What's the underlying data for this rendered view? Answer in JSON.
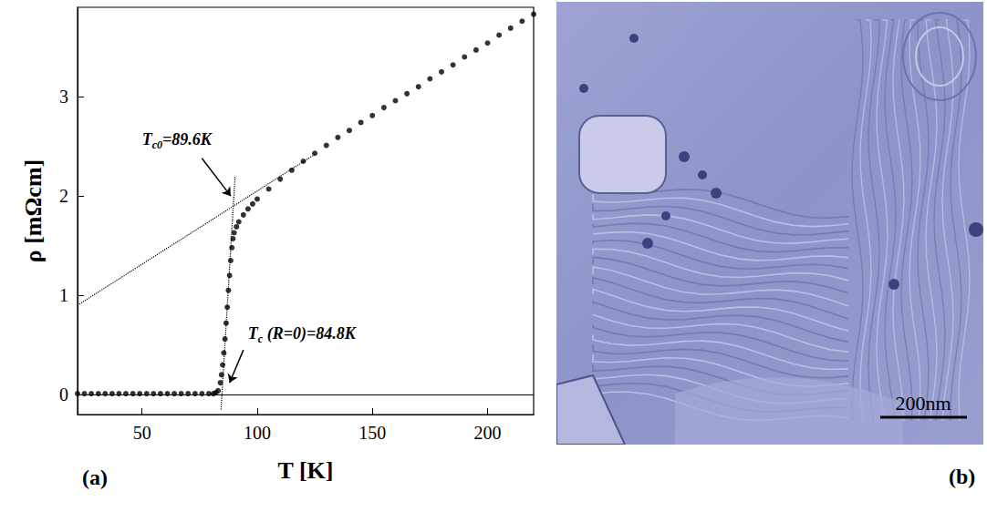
{
  "chart_data": {
    "type": "scatter",
    "marker": "circle",
    "color": "#000000",
    "x_label": "T [K]",
    "y_label": "ρ [mΩcm]",
    "x": [
      22,
      25,
      28,
      31,
      34,
      37,
      40,
      43,
      46,
      49,
      52,
      55,
      58,
      61,
      64,
      67,
      70,
      73,
      76,
      79,
      81,
      82,
      83,
      84,
      84.5,
      85,
      85.5,
      86,
      86.5,
      87,
      87.5,
      88,
      88.5,
      89,
      89.5,
      90,
      91,
      92,
      94,
      96,
      98,
      100,
      105,
      110,
      115,
      120,
      125,
      130,
      135,
      140,
      145,
      150,
      155,
      160,
      165,
      170,
      175,
      180,
      185,
      190,
      195,
      200,
      205,
      210,
      215,
      220
    ],
    "values": [
      0.01,
      0.01,
      0.01,
      0.01,
      0.01,
      0.01,
      0.01,
      0.01,
      0.01,
      0.01,
      0.01,
      0.01,
      0.01,
      0.01,
      0.01,
      0.01,
      0.01,
      0.01,
      0.01,
      0.01,
      0.01,
      0.02,
      0.04,
      0.12,
      0.2,
      0.3,
      0.42,
      0.56,
      0.72,
      0.88,
      1.05,
      1.2,
      1.35,
      1.48,
      1.57,
      1.63,
      1.69,
      1.74,
      1.81,
      1.87,
      1.92,
      1.97,
      2.07,
      2.17,
      2.26,
      2.35,
      2.43,
      2.51,
      2.59,
      2.66,
      2.74,
      2.81,
      2.89,
      2.96,
      3.03,
      3.1,
      3.18,
      3.25,
      3.32,
      3.4,
      3.47,
      3.54,
      3.62,
      3.69,
      3.76,
      3.83
    ],
    "xlim": [
      22,
      220
    ],
    "xticks": [
      50,
      100,
      150,
      200
    ],
    "ylim": [
      -0.2,
      3.9
    ],
    "yticks": [
      0,
      1,
      2,
      3
    ],
    "grid": false,
    "fit_lines": [
      {
        "x": [
          22,
          125
        ],
        "values": [
          0.9,
          2.42
        ],
        "line_style": "dotted"
      },
      {
        "x": [
          84.3,
          90.4
        ],
        "values": [
          -0.15,
          2.2
        ],
        "line_style": "dotted"
      }
    ],
    "hlines": [
      0
    ],
    "annotations": [
      {
        "text": "Tc0=89.6K",
        "subscript": "c0",
        "text_xy": [
          50,
          2.57
        ],
        "arrow_from": [
          76,
          2.38
        ],
        "arrow_to": [
          88.5,
          2.0
        ]
      },
      {
        "text": "Tc (R=0)=84.8K",
        "subscript": "c",
        "text_xy": [
          96,
          0.62
        ],
        "arrow_from": [
          94,
          0.45
        ],
        "arrow_to": [
          88,
          0.12
        ]
      }
    ]
  },
  "panels": {
    "chart_label": "(a)",
    "image_label": "(b)",
    "scale_bar": "200nm"
  }
}
